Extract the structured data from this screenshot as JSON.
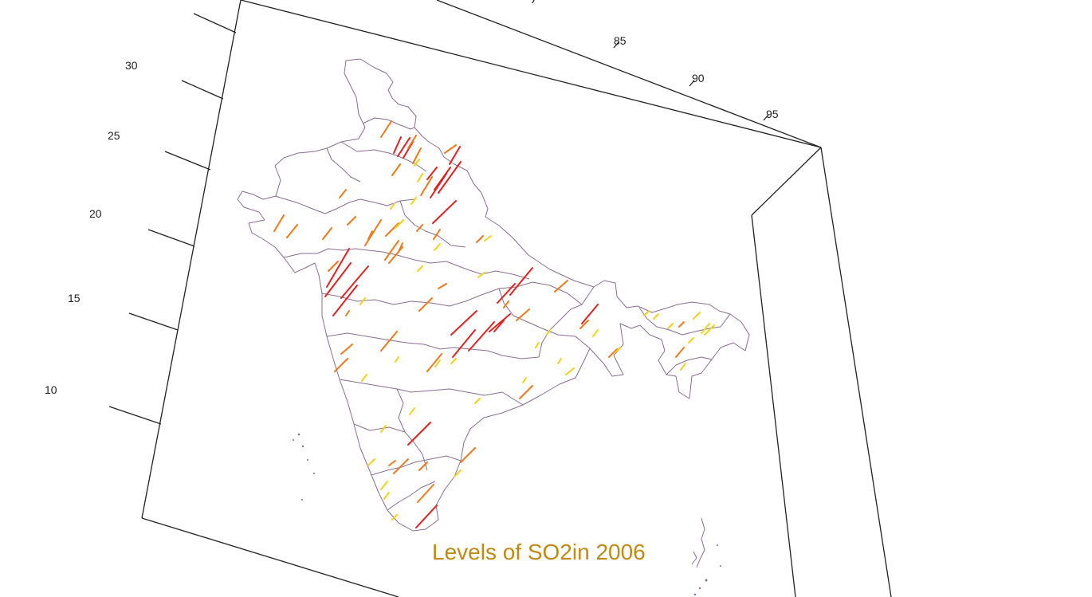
{
  "title": "Levels of SO2in 2006",
  "colors": {
    "title": "#c08a12",
    "border": "#8a6e93",
    "high": "#e02222",
    "medium": "#f07a1a",
    "low": "#f2d21a"
  },
  "axes": {
    "latitude_ticks": [
      "30",
      "25",
      "20",
      "15",
      "10"
    ],
    "longitude_ticks": [
      "85",
      "90",
      "95"
    ]
  }
}
